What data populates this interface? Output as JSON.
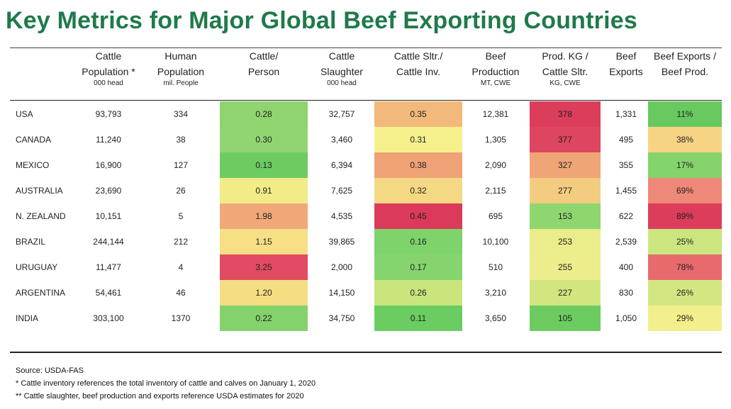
{
  "title": "Key Metrics for Major Global Beef Exporting Countries",
  "headers": [
    {
      "l1": "",
      "l2": "",
      "unit": ""
    },
    {
      "l1": "Cattle",
      "l2": "Population *",
      "unit": "000 head"
    },
    {
      "l1": "Human",
      "l2": "Population",
      "unit": "mil. People"
    },
    {
      "l1": "Cattle/",
      "l2": "Person",
      "unit": ""
    },
    {
      "l1": "Cattle",
      "l2": "Slaughter",
      "unit": "000 head"
    },
    {
      "l1": "Cattle Sltr./",
      "l2": "Cattle Inv.",
      "unit": ""
    },
    {
      "l1": "Beef",
      "l2": "Production",
      "unit": "MT, CWE"
    },
    {
      "l1": "Prod. KG /",
      "l2": "Cattle Sltr.",
      "unit": "KG, CWE"
    },
    {
      "l1": "Beef",
      "l2": "Exports",
      "unit": ""
    },
    {
      "l1": "Beef Exports /",
      "l2": "Beef Prod.",
      "unit": ""
    }
  ],
  "rows": [
    {
      "country": "USA",
      "cattle": "93,793",
      "human": "334",
      "cpp": "0.28",
      "sltr": "32,757",
      "ratio": "0.35",
      "prod": "12,381",
      "kg": "378",
      "exp": "1,331",
      "share": "11%"
    },
    {
      "country": "CANADA",
      "cattle": "11,240",
      "human": "38",
      "cpp": "0.30",
      "sltr": "3,460",
      "ratio": "0.31",
      "prod": "1,305",
      "kg": "377",
      "exp": "495",
      "share": "38%"
    },
    {
      "country": "MEXICO",
      "cattle": "16,900",
      "human": "127",
      "cpp": "0.13",
      "sltr": "6,394",
      "ratio": "0.38",
      "prod": "2,090",
      "kg": "327",
      "exp": "355",
      "share": "17%"
    },
    {
      "country": "AUSTRALIA",
      "cattle": "23,690",
      "human": "26",
      "cpp": "0.91",
      "sltr": "7,625",
      "ratio": "0.32",
      "prod": "2,115",
      "kg": "277",
      "exp": "1,455",
      "share": "69%"
    },
    {
      "country": "N. ZEALAND",
      "cattle": "10,151",
      "human": "5",
      "cpp": "1.98",
      "sltr": "4,535",
      "ratio": "0.45",
      "prod": "695",
      "kg": "153",
      "exp": "622",
      "share": "89%"
    },
    {
      "country": "BRAZIL",
      "cattle": "244,144",
      "human": "212",
      "cpp": "1.15",
      "sltr": "39,865",
      "ratio": "0.16",
      "prod": "10,100",
      "kg": "253",
      "exp": "2,539",
      "share": "25%"
    },
    {
      "country": "URUGUAY",
      "cattle": "11,477",
      "human": "4",
      "cpp": "3.25",
      "sltr": "2,000",
      "ratio": "0.17",
      "prod": "510",
      "kg": "255",
      "exp": "400",
      "share": "78%"
    },
    {
      "country": "ARGENTINA",
      "cattle": "54,461",
      "human": "46",
      "cpp": "1.20",
      "sltr": "14,150",
      "ratio": "0.26",
      "prod": "3,210",
      "kg": "227",
      "exp": "830",
      "share": "26%"
    },
    {
      "country": "INDIA",
      "cattle": "303,100",
      "human": "1370",
      "cpp": "0.22",
      "sltr": "34,750",
      "ratio": "0.11",
      "prod": "3,650",
      "kg": "105",
      "exp": "1,050",
      "share": "29%"
    }
  ],
  "heat_colors": {
    "cpp": [
      "#8fd46e",
      "#90d571",
      "#6ccc62",
      "#f2ec88",
      "#f0a878",
      "#f6df84",
      "#e24b62",
      "#f5dd82",
      "#84d26b"
    ],
    "ratio": [
      "#f3b97a",
      "#f7f18d",
      "#f0a277",
      "#f4d884",
      "#dc3a5a",
      "#7fd36b",
      "#86d46e",
      "#c9e57c",
      "#6bcc62"
    ],
    "kg": [
      "#dc3d5b",
      "#de4660",
      "#f0a577",
      "#f4cc80",
      "#8fd66f",
      "#ebec8a",
      "#eded8b",
      "#d2e680",
      "#6ccc62"
    ],
    "share": [
      "#67c95f",
      "#f7d484",
      "#85d36b",
      "#ee8878",
      "#dc3d5b",
      "#cbe67f",
      "#e86a6c",
      "#d2e781",
      "#f3ef8c"
    ]
  },
  "notes": [
    "Source:  USDA-FAS",
    "* Cattle inventory references the total inventory of cattle and calves on January 1, 2020",
    "** Cattle slaughter, beef production and exports reference USDA estimates for 2020"
  ]
}
